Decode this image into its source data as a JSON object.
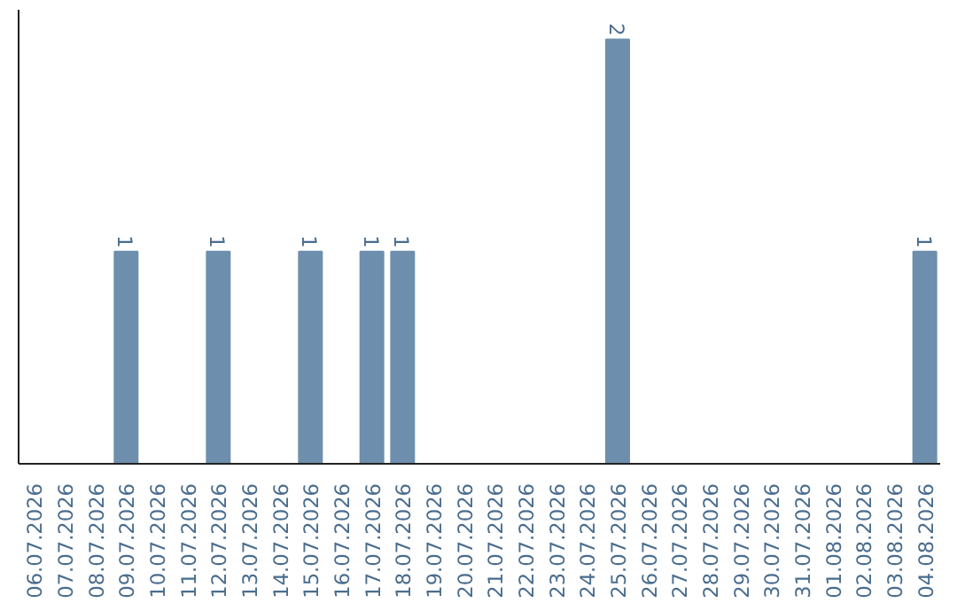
{
  "chart_data": {
    "type": "bar",
    "categories": [
      "06.07.2026",
      "07.07.2026",
      "08.07.2026",
      "09.07.2026",
      "10.07.2026",
      "11.07.2026",
      "12.07.2026",
      "13.07.2026",
      "14.07.2026",
      "15.07.2026",
      "16.07.2026",
      "17.07.2026",
      "18.07.2026",
      "19.07.2026",
      "20.07.2026",
      "21.07.2026",
      "22.07.2026",
      "23.07.2026",
      "24.07.2026",
      "25.07.2026",
      "26.07.2026",
      "27.07.2026",
      "28.07.2026",
      "29.07.2026",
      "30.07.2026",
      "31.07.2026",
      "01.08.2026",
      "02.08.2026",
      "03.08.2026",
      "04.08.2026"
    ],
    "values": [
      0,
      0,
      0,
      1,
      0,
      0,
      1,
      0,
      0,
      1,
      0,
      1,
      1,
      0,
      0,
      0,
      0,
      0,
      0,
      2,
      0,
      0,
      0,
      0,
      0,
      0,
      0,
      0,
      0,
      1
    ],
    "value_labels": [
      null,
      null,
      null,
      "1",
      null,
      null,
      "1",
      null,
      null,
      "1",
      null,
      "1",
      "1",
      null,
      null,
      null,
      null,
      null,
      null,
      "2",
      null,
      null,
      null,
      null,
      null,
      null,
      null,
      null,
      null,
      "1"
    ],
    "color": "#6d8fad",
    "grid": false,
    "tick_labels": "x"
  }
}
